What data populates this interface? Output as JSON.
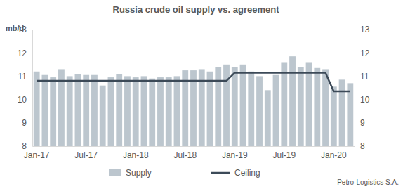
{
  "chart_data": {
    "type": "bar",
    "title": "Russia crude oil supply vs. agreement",
    "y_label": "mb/d",
    "source": "Petro-Logistics S.A.",
    "categories": [
      "Jan-17",
      null,
      null,
      null,
      null,
      null,
      "Jul-17",
      null,
      null,
      null,
      null,
      null,
      "Jan-18",
      null,
      null,
      null,
      null,
      null,
      "Jul-18",
      null,
      null,
      null,
      null,
      null,
      "Jan-19",
      null,
      null,
      null,
      null,
      null,
      "Jul-19",
      null,
      null,
      null,
      null,
      null,
      "Jan-20",
      null,
      null
    ],
    "series": [
      {
        "name": "Supply",
        "type": "bar",
        "color": "#bcc6ce",
        "values": [
          11.2,
          11.05,
          10.95,
          11.3,
          11.0,
          11.1,
          11.05,
          11.05,
          10.6,
          10.95,
          11.1,
          11.0,
          10.95,
          11.0,
          10.9,
          10.95,
          10.95,
          11.0,
          11.25,
          11.25,
          11.3,
          11.2,
          11.4,
          11.5,
          11.4,
          11.5,
          11.2,
          11.0,
          10.4,
          11.05,
          11.6,
          11.85,
          11.4,
          11.6,
          11.35,
          11.3,
          10.55,
          10.85,
          10.7
        ]
      },
      {
        "name": "Ceiling",
        "type": "line",
        "color": "#3c4a58",
        "values": [
          10.8,
          10.8,
          10.8,
          10.8,
          10.8,
          10.8,
          10.8,
          10.8,
          10.8,
          10.8,
          10.8,
          10.8,
          10.8,
          10.8,
          10.8,
          10.8,
          10.8,
          10.8,
          10.8,
          10.8,
          10.8,
          10.8,
          10.8,
          10.8,
          11.15,
          11.15,
          11.15,
          11.15,
          11.15,
          11.15,
          11.15,
          11.15,
          11.15,
          11.15,
          11.15,
          11.15,
          10.35,
          10.35,
          10.35
        ]
      }
    ],
    "ylim": [
      8,
      13
    ],
    "yticks": [
      8,
      9,
      10,
      11,
      12,
      13
    ],
    "y2lim": [
      8,
      13
    ],
    "y2ticks": [
      8,
      9,
      10,
      11,
      12,
      13
    ],
    "grid": false,
    "legend": "bottom"
  }
}
